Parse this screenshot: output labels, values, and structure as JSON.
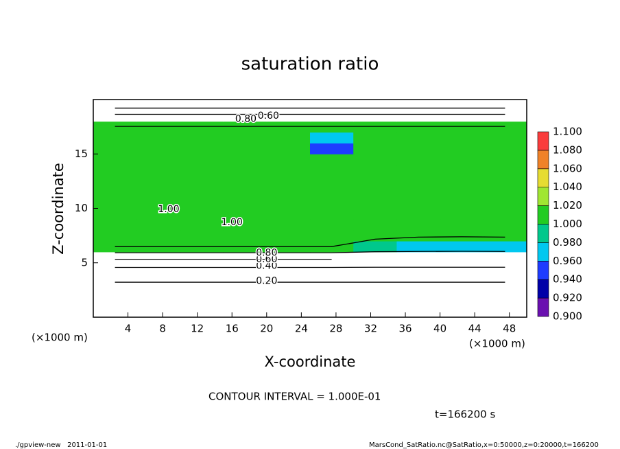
{
  "chart_data": {
    "type": "contour",
    "title": "saturation ratio",
    "xlabel": "X-coordinate",
    "ylabel": "Z-coordinate",
    "x_unit": "(×1000 m)",
    "x_unit_right": "(×1000 m)",
    "note": "CONTOUR INTERVAL = 1.000E-01",
    "time": "t=166200 s",
    "footer_left": "./gpview-new   2011-01-01",
    "footer_right": "MarsCond_SatRatio.nc@SatRatio,x=0:50000,z=0:20000,t=166200",
    "xlim": [
      0,
      50
    ],
    "ylim": [
      0,
      20
    ],
    "xticks": [
      4,
      8,
      12,
      16,
      20,
      24,
      28,
      32,
      36,
      40,
      44,
      48
    ],
    "yticks": [
      5,
      10,
      15
    ],
    "x": [
      2.5,
      7.5,
      12.5,
      17.5,
      22.5,
      27.5,
      32.5,
      37.5,
      42.5,
      47.5
    ],
    "y": [
      0.5,
      1.5,
      2.5,
      3.5,
      4.5,
      5.5,
      6.5,
      7.5,
      8.5,
      9.5,
      10.5,
      11.5,
      12.5,
      13.5,
      14.5,
      15.5,
      16.5,
      17.5,
      18.5,
      19.5
    ],
    "z": [
      [
        0.05,
        0.05,
        0.05,
        0.05,
        0.05,
        0.05,
        0.05,
        0.05,
        0.05,
        0.05
      ],
      [
        0.1,
        0.1,
        0.1,
        0.1,
        0.1,
        0.1,
        0.1,
        0.1,
        0.1,
        0.1
      ],
      [
        0.15,
        0.15,
        0.15,
        0.15,
        0.15,
        0.15,
        0.15,
        0.15,
        0.15,
        0.15
      ],
      [
        0.22,
        0.22,
        0.22,
        0.22,
        0.22,
        0.22,
        0.22,
        0.22,
        0.22,
        0.22
      ],
      [
        0.38,
        0.38,
        0.38,
        0.38,
        0.38,
        0.38,
        0.38,
        0.38,
        0.38,
        0.38
      ],
      [
        0.65,
        0.65,
        0.65,
        0.65,
        0.65,
        0.65,
        0.6,
        0.6,
        0.6,
        0.6
      ],
      [
        1.005,
        1.005,
        1.005,
        1.005,
        1.005,
        1.005,
        0.99,
        0.97,
        0.96,
        0.97
      ],
      [
        1.005,
        1.005,
        1.005,
        1.005,
        1.005,
        1.005,
        1.005,
        1.005,
        1.005,
        1.005
      ],
      [
        1.005,
        1.005,
        1.005,
        1.005,
        1.005,
        1.005,
        1.005,
        1.005,
        1.005,
        1.005
      ],
      [
        1.005,
        1.005,
        1.005,
        1.005,
        1.005,
        1.005,
        1.005,
        1.005,
        1.005,
        1.005
      ],
      [
        1.005,
        1.005,
        1.005,
        1.005,
        1.005,
        1.005,
        1.005,
        1.005,
        1.005,
        1.005
      ],
      [
        1.005,
        1.005,
        1.005,
        1.005,
        1.005,
        1.005,
        1.005,
        1.005,
        1.005,
        1.005
      ],
      [
        1.005,
        1.005,
        1.005,
        1.005,
        1.005,
        1.005,
        1.005,
        1.005,
        1.005,
        1.005
      ],
      [
        1.005,
        1.005,
        1.005,
        1.005,
        1.005,
        1.005,
        1.005,
        1.005,
        1.005,
        1.005
      ],
      [
        1.005,
        1.005,
        1.005,
        1.005,
        1.005,
        1.005,
        1.005,
        1.005,
        1.005,
        1.005
      ],
      [
        1.005,
        1.005,
        1.005,
        1.005,
        1.005,
        0.94,
        1.005,
        1.005,
        1.005,
        1.005
      ],
      [
        1.005,
        1.005,
        1.005,
        1.005,
        1.005,
        0.97,
        1.005,
        1.005,
        1.005,
        1.005
      ],
      [
        1.005,
        1.005,
        1.005,
        1.005,
        1.005,
        1.005,
        1.005,
        1.005,
        1.005,
        1.005
      ],
      [
        0.85,
        0.85,
        0.85,
        0.85,
        0.85,
        0.85,
        0.85,
        0.85,
        0.85,
        0.85
      ],
      [
        0.5,
        0.5,
        0.5,
        0.5,
        0.5,
        0.5,
        0.5,
        0.5,
        0.5,
        0.5
      ]
    ],
    "levels": [
      0.9,
      0.92,
      0.94,
      0.96,
      0.98,
      1.0,
      1.02,
      1.04,
      1.06,
      1.08,
      1.1
    ],
    "level_labels": [
      "0.900",
      "0.920",
      "0.940",
      "0.960",
      "0.980",
      "1.000",
      "1.020",
      "1.040",
      "1.060",
      "1.080",
      "1.100"
    ],
    "colors": [
      "#6a10b0",
      "#0000a8",
      "#1e3cff",
      "#00c8f0",
      "#00c88c",
      "#22cc22",
      "#a0e632",
      "#e6dc32",
      "#f08228",
      "#fa3c3c"
    ],
    "contour_labels": [
      {
        "value": 0.2,
        "label": "0.20",
        "x": 20,
        "y": 3.3
      },
      {
        "value": 0.4,
        "label": "0.40",
        "x": 20,
        "y": 4.7
      },
      {
        "value": 0.6,
        "label": "0.60",
        "x": 20,
        "y": 5.3
      },
      {
        "value": 0.8,
        "label": "0.80",
        "x": 20,
        "y": 5.9
      },
      {
        "value": 1,
        "label": "1.00",
        "x": 8.7,
        "y": 9.9
      },
      {
        "value": 1,
        "label": "1.00",
        "x": 16,
        "y": 8.7
      },
      {
        "value": 0.8,
        "label": "0.80",
        "x": 17.6,
        "y": 18.2
      },
      {
        "value": 0.6,
        "label": "0.60",
        "x": 20.2,
        "y": 18.5
      }
    ]
  }
}
